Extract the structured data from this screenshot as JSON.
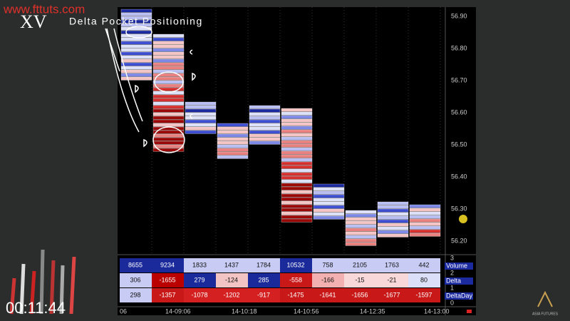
{
  "watermark": "www.fttuts.com",
  "chapter": "XV",
  "heading": "Delta Pocket Positioning",
  "price_axis": [
    "56.90",
    "56.80",
    "56.70",
    "56.60",
    "56.50",
    "56.40",
    "56.30",
    "56.20"
  ],
  "study_axis": [
    "3",
    "2",
    "1",
    "0"
  ],
  "time_axis": [
    "06",
    "14-09:06",
    "14-10:18",
    "14-10:56",
    "14-12:35",
    "14-13:00"
  ],
  "table": {
    "row_labels": [
      "Volume",
      "Delta",
      "DeltaDay"
    ],
    "rows": [
      [
        8655,
        9234,
        1833,
        1437,
        1784,
        10532,
        758,
        2105,
        1763,
        442
      ],
      [
        306,
        -1655,
        279,
        -124,
        285,
        -558,
        -166,
        -15,
        -21,
        80
      ],
      [
        298,
        -1357,
        -1078,
        -1202,
        -917,
        -1475,
        -1641,
        -1656,
        -1677,
        -1597
      ]
    ]
  },
  "timer": "00:11:44",
  "logo": "ASIA FUTURES"
}
